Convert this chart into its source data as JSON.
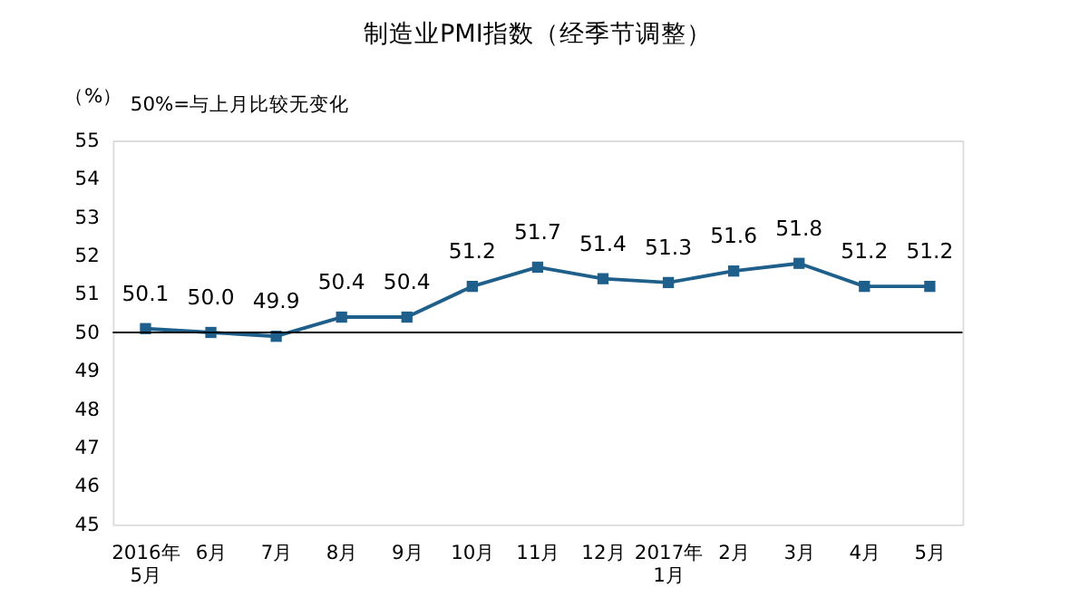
{
  "chart_data": {
    "type": "line",
    "title": "制造业PMI指数（经季节调整）",
    "ylabel": "（%）",
    "annotations": [
      "50%=与上月比较无变化"
    ],
    "categories": [
      "2016年\n5月",
      "6月",
      "7月",
      "8月",
      "9月",
      "10月",
      "11月",
      "12月",
      "2017年\n1月",
      "2月",
      "3月",
      "4月",
      "5月"
    ],
    "series": [
      {
        "color": "#1f5f8b",
        "values": [
          50.1,
          50.0,
          49.9,
          50.4,
          50.4,
          51.2,
          51.7,
          51.4,
          51.3,
          51.6,
          51.8,
          51.2,
          51.2
        ]
      }
    ],
    "ylim": [
      45,
      55
    ],
    "yticks": [
      45,
      46,
      47,
      48,
      49,
      50,
      51,
      52,
      53,
      54,
      55
    ],
    "ref_lines": [
      {
        "axis": "y",
        "value": 50,
        "color": "#000000"
      }
    ],
    "value_labels": [
      "50.1",
      "50.0",
      "49.9",
      "50.4",
      "50.4",
      "51.2",
      "51.7",
      "51.4",
      "51.3",
      "51.6",
      "51.8",
      "51.2",
      "51.2"
    ],
    "marker": "square",
    "line_style": "solid",
    "grid": false
  }
}
